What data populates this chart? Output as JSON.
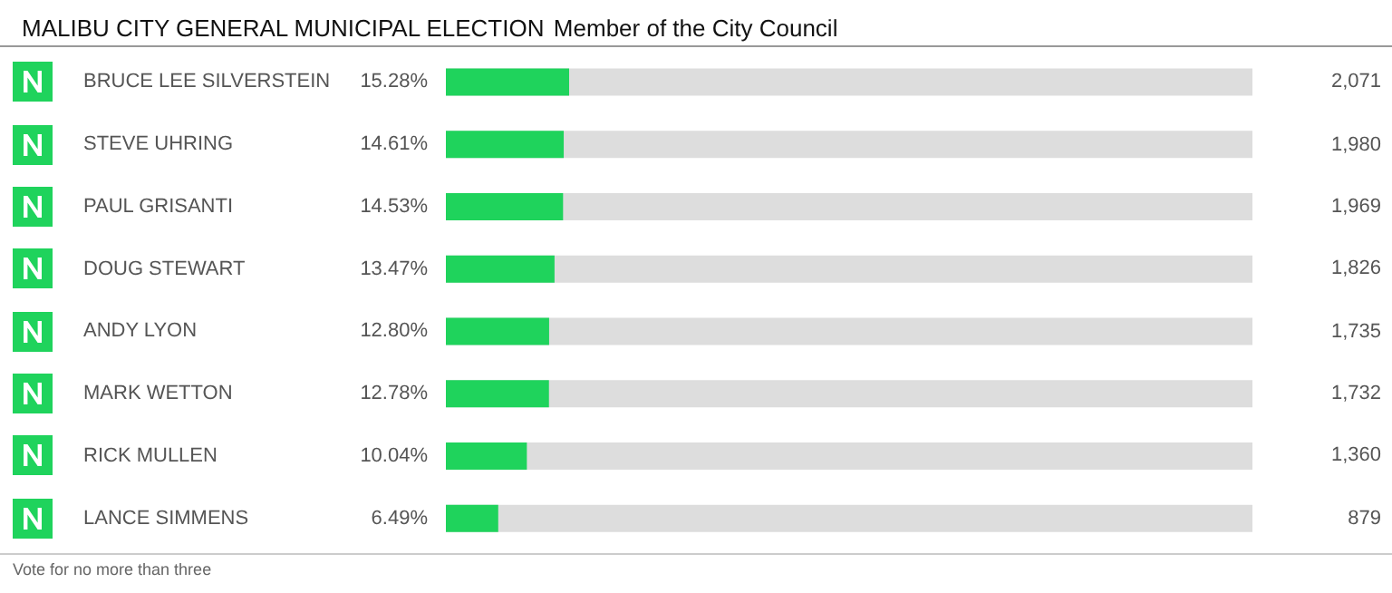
{
  "chart_data": {
    "type": "bar",
    "orientation": "horizontal",
    "title": "MALIBU CITY GENERAL MUNICIPAL ELECTION",
    "subtitle": "Member of the City Council",
    "categories": [
      "BRUCE LEE SILVERSTEIN",
      "STEVE UHRING",
      "PAUL GRISANTI",
      "DOUG STEWART",
      "ANDY LYON",
      "MARK WETTON",
      "RICK MULLEN",
      "LANCE SIMMENS"
    ],
    "values": [
      15.28,
      14.61,
      14.53,
      13.47,
      12.8,
      12.78,
      10.04,
      6.49
    ],
    "value_labels": [
      "15.28%",
      "14.61%",
      "14.53%",
      "13.47%",
      "12.80%",
      "12.78%",
      "10.04%",
      "6.49%"
    ],
    "color": "#1fd35c",
    "xlim": [
      0,
      100
    ],
    "tick_labels": "y",
    "annotations": [
      "2,071",
      "1,980",
      "1,969",
      "1,826",
      "1,735",
      "1,732",
      "1,360",
      "879",
      "Vote for no more than three"
    ]
  }
}
